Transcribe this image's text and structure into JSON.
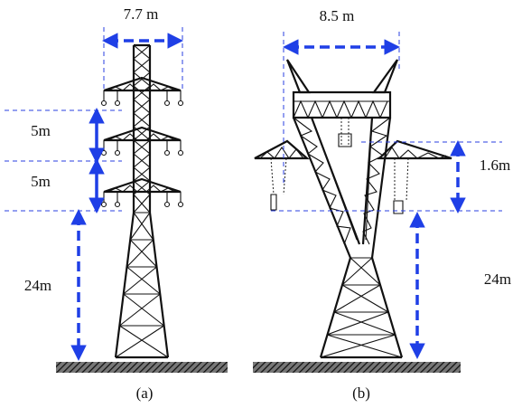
{
  "tower_a": {
    "width": "7.7 m",
    "spacing_upper": "5m",
    "spacing_lower": "5m",
    "height": "24m",
    "caption": "(a)"
  },
  "tower_b": {
    "width": "8.5 m",
    "arm_drop": "1.6m",
    "height": "24m",
    "caption": "(b)"
  }
}
